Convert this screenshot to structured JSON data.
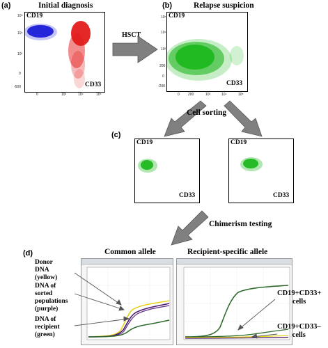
{
  "panels": {
    "a": {
      "letter": "(a)",
      "title": "Initial diagnosis",
      "marker_y": "CD19",
      "marker_x": "CD33",
      "y_ticks": [
        "10⁵",
        "10⁴",
        "10³",
        "0",
        "-500"
      ],
      "x_ticks": [
        "0",
        "10³",
        "10⁴",
        "10⁵"
      ]
    },
    "b": {
      "letter": "(b)",
      "title": "Relapse suspicion",
      "marker_y": "CD19",
      "marker_x": "CD33",
      "y_ticks": [
        "10⁵",
        "10⁴",
        "10³",
        "200",
        "0",
        "-200"
      ],
      "x_ticks": [
        "0",
        "200",
        "10³",
        "10⁴",
        "10⁵"
      ]
    },
    "c": {
      "letter": "(c)",
      "left": {
        "marker_y": "CD19",
        "marker_x": "CD33"
      },
      "right": {
        "marker_y": "CD19",
        "marker_x": "CD33"
      }
    },
    "d": {
      "letter": "(d)",
      "title_left": "Common allele",
      "title_right": "Recipient-specific allele"
    }
  },
  "arrows": {
    "hsct": "HSCT",
    "sorting": "Cell sorting",
    "chimerism": "Chimerism testing"
  },
  "annotations": {
    "donor": [
      "Donor",
      "DNA",
      "(yellow)"
    ],
    "sorted": [
      "DNA of",
      "sorted",
      "populations",
      "(purple)"
    ],
    "recipient": [
      "DNA of",
      "recipient",
      "(green)"
    ],
    "pos": [
      "CD19+CD33+",
      "cells"
    ],
    "neg": [
      "CD19+CD33–",
      "cells"
    ]
  },
  "colors": {
    "blue_population": "#1c1cd8",
    "red_population": "#e31b1b",
    "green_population": "#1fb81f",
    "curve_yellow": "#e6d21e",
    "curve_purple": "#4a1a6e",
    "curve_green": "#2f6b2f",
    "arrow_gray": "#808080"
  }
}
